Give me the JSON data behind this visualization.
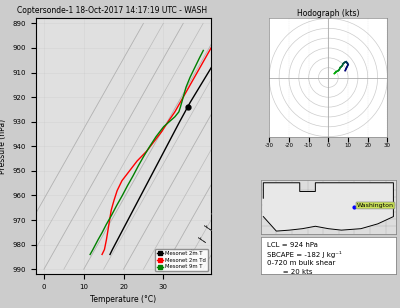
{
  "title": "Coptersonde-1 18-Oct-2017 14:17:19 UTC - WASH",
  "bg_color": "#cccccc",
  "skewt_bg": "#e0e0e0",
  "pressure_min": 890,
  "pressure_max": 990,
  "pressure_ticks": [
    890,
    900,
    910,
    920,
    930,
    940,
    950,
    960,
    970,
    980,
    990
  ],
  "temp_min": 0,
  "temp_max": 35,
  "temp_ticks": [
    0,
    10,
    20,
    30
  ],
  "temp_xlabel": "Temperature (°C)",
  "pressure_ylabel": "Pressure (hPa)",
  "skew_factor": 1.0,
  "temp_profile_p": [
    984,
    982,
    978,
    974,
    970,
    966,
    962,
    958,
    954,
    950,
    946,
    942,
    938,
    934,
    930,
    926,
    924,
    922,
    918,
    914,
    910,
    906,
    902,
    899
  ],
  "temp_profile_t": [
    14.5,
    14.4,
    14.3,
    14.2,
    14.1,
    14.0,
    13.9,
    13.8,
    13.7,
    13.6,
    13.5,
    13.4,
    13.3,
    13.2,
    13.1,
    13.05,
    13.0,
    13.0,
    13.1,
    13.2,
    13.3,
    13.4,
    13.5,
    13.6
  ],
  "dewp_profile_p": [
    984,
    982,
    978,
    974,
    970,
    966,
    962,
    958,
    954,
    950,
    946,
    942,
    938,
    934,
    930,
    926,
    924,
    922,
    918,
    914,
    910,
    906,
    902,
    899
  ],
  "dewp_profile_t": [
    12.5,
    12.4,
    11.5,
    10.5,
    9.5,
    8.5,
    7.8,
    7.2,
    7.0,
    7.5,
    8.0,
    9.0,
    9.5,
    10.0,
    10.2,
    10.5,
    10.5,
    10.5,
    10.5,
    10.5,
    10.5,
    10.5,
    10.5,
    10.5
  ],
  "green_p": [
    984,
    982,
    978,
    975,
    972,
    968,
    964,
    960,
    956,
    952,
    948,
    944,
    940,
    936,
    932,
    930,
    928,
    926,
    924,
    920,
    916,
    912,
    908,
    904,
    901
  ],
  "green_t": [
    9.5,
    9.5,
    9.4,
    9.4,
    9.3,
    9.3,
    9.2,
    9.2,
    9.1,
    9.1,
    9.0,
    9.0,
    9.1,
    9.3,
    9.8,
    10.5,
    11.2,
    11.5,
    11.2,
    10.5,
    9.8,
    9.4,
    9.2,
    9.0,
    8.9
  ],
  "wind_p": [
    984,
    979,
    974,
    969,
    964,
    959,
    954,
    949,
    944,
    939,
    934,
    929,
    924,
    919,
    914,
    909,
    904,
    899
  ],
  "wind_u": [
    3,
    3,
    3,
    3,
    3,
    3,
    3,
    3,
    3,
    4,
    4,
    4,
    4,
    4,
    5,
    5,
    5,
    5
  ],
  "wind_v": [
    -2,
    -2,
    -2,
    -2,
    -2,
    -2,
    -2,
    -2,
    -2,
    -3,
    -3,
    -3,
    -3,
    -3,
    -3,
    -3,
    -3,
    -3
  ],
  "hodo_u": [
    3.0,
    3.5,
    4.0,
    5.0,
    5.5,
    6.0,
    6.5,
    7.0,
    7.5,
    8.0,
    8.5,
    9.0,
    9.5,
    9.8,
    10.0,
    9.5,
    9.0,
    8.5
  ],
  "hodo_v": [
    2.0,
    2.5,
    3.0,
    3.5,
    4.0,
    5.0,
    5.5,
    6.0,
    7.0,
    7.5,
    7.8,
    8.0,
    7.5,
    7.0,
    6.5,
    5.5,
    4.5,
    3.5
  ],
  "hodo_title": "Hodograph (kts)",
  "hodo_xlim": [
    -30,
    30
  ],
  "hodo_ylim": [
    -30,
    30
  ],
  "hodo_xticks": [
    -30,
    -20,
    -10,
    0,
    10,
    20,
    30
  ],
  "lcl_pressure": 924,
  "lcl_text_line1": "LCL = 924 hPa",
  "lcl_text_line2": "SBCAPE = -182 J kg⁻¹",
  "lcl_text_line3": "0-720 m bulk shear",
  "lcl_text_line4": "       = 20 kts",
  "ok_map_label": "Washington",
  "isotherm_color": "#aaaaaa",
  "dry_adiabat_color": "#aaaaaa"
}
